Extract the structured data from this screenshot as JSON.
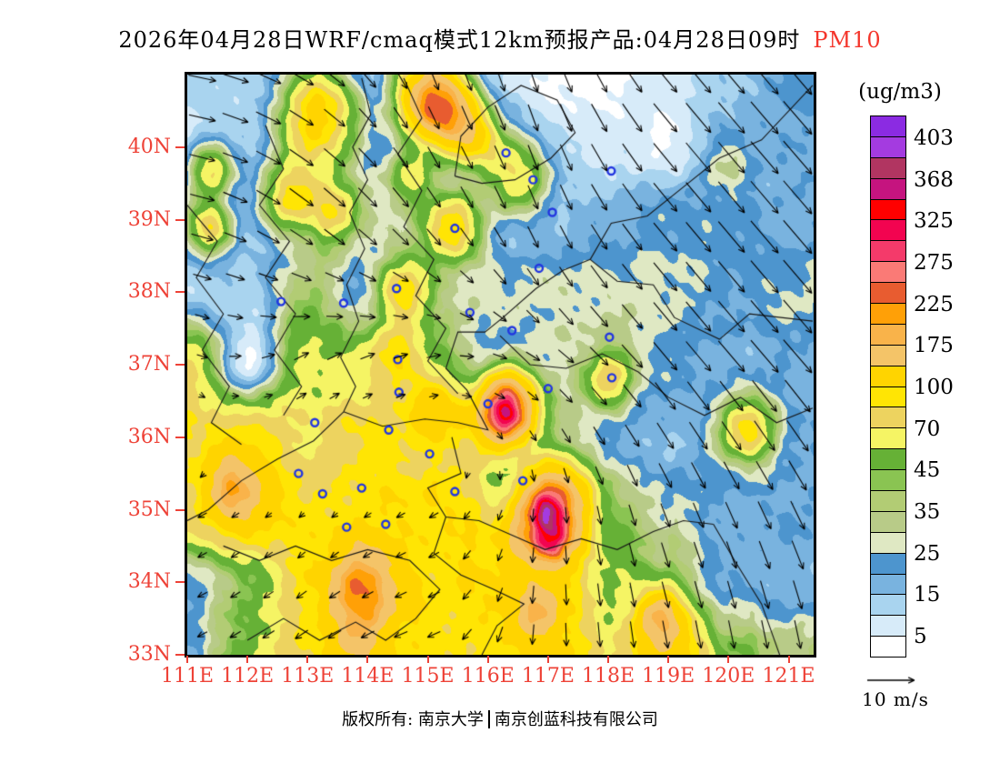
{
  "title": {
    "main": "2026年04月28日WRF/cmaq模式12km预报产品:04月28日09时",
    "pollutant": "PM10"
  },
  "colorbar": {
    "unit_label": "(ug/m3)",
    "tick_labels": [
      "403",
      "368",
      "325",
      "275",
      "225",
      "175",
      "100",
      "70",
      "45",
      "35",
      "25",
      "15",
      "5"
    ],
    "colors_top_to_bottom": [
      "#8b2be2",
      "#a43be0",
      "#b13561",
      "#c5147f",
      "#ff0000",
      "#f20450",
      "#f43a6a",
      "#fa7a76",
      "#e85c30",
      "#ffa007",
      "#f9b34a",
      "#f4c468",
      "#ffd400",
      "#ffe504",
      "#edd35f",
      "#f5f464",
      "#66b136",
      "#8ac452",
      "#b2cc74",
      "#b8cb88",
      "#dfe8c3",
      "#4d95ce",
      "#79b3df",
      "#a9d4ef",
      "#d7ebf9",
      "#ffffff"
    ]
  },
  "axes": {
    "lat_labels": [
      "40N",
      "39N",
      "38N",
      "37N",
      "36N",
      "35N",
      "34N",
      "33N"
    ],
    "lat_values": [
      40,
      39,
      38,
      37,
      36,
      35,
      34,
      33
    ],
    "lon_labels": [
      "111E",
      "112E",
      "113E",
      "114E",
      "115E",
      "116E",
      "117E",
      "118E",
      "119E",
      "120E",
      "121E"
    ],
    "lon_values": [
      111,
      112,
      113,
      114,
      115,
      116,
      117,
      118,
      119,
      120,
      121
    ],
    "label_color": "#ee4237"
  },
  "wind_legend": {
    "label": "10 m/s",
    "speed": 10
  },
  "footer": {
    "text1": "版权所有: 南京大学",
    "text2": "南京创蓝科技有限公司"
  },
  "chart_data": {
    "type": "heatmap",
    "title": "PM10 concentration forecast (ug/m3) with surface wind vectors",
    "lon_range": [
      111,
      121.42
    ],
    "lat_range": [
      33,
      41.0
    ],
    "levels_desc": [
      403,
      385,
      368,
      346,
      325,
      300,
      275,
      250,
      225,
      200,
      175,
      137,
      100,
      85,
      70,
      57,
      45,
      40,
      35,
      30,
      25,
      20,
      15,
      10,
      5
    ],
    "base_grid": {
      "lons": [
        111,
        112,
        113,
        114,
        115,
        116,
        117,
        118,
        119,
        120,
        121
      ],
      "lats_top_down": [
        41,
        40,
        39,
        38,
        37,
        36,
        35,
        34,
        33
      ],
      "values": [
        [
          12,
          12,
          20,
          10,
          60,
          12,
          4,
          4,
          8,
          14,
          22
        ],
        [
          6,
          12,
          45,
          20,
          22,
          15,
          10,
          8,
          4,
          20,
          18
        ],
        [
          15,
          12,
          18,
          25,
          30,
          12,
          12,
          18,
          22,
          22,
          18
        ],
        [
          12,
          12,
          40,
          18,
          28,
          28,
          27,
          28,
          28,
          20,
          26
        ],
        [
          70,
          4,
          60,
          55,
          50,
          20,
          28,
          32,
          22,
          18,
          18
        ],
        [
          85,
          90,
          70,
          90,
          75,
          80,
          35,
          20,
          15,
          20,
          20
        ],
        [
          80,
          120,
          90,
          95,
          100,
          95,
          230,
          42,
          28,
          18,
          20
        ],
        [
          20,
          45,
          90,
          150,
          95,
          100,
          110,
          55,
          40,
          20,
          16
        ],
        [
          20,
          50,
          90,
          100,
          90,
          90,
          110,
          70,
          120,
          45,
          35
        ]
      ]
    },
    "hotspots": [
      [
        113.2,
        40.5,
        0.4,
        80
      ],
      [
        115.05,
        40.62,
        0.32,
        170
      ],
      [
        115.45,
        40.38,
        0.3,
        120
      ],
      [
        115.85,
        40.1,
        0.28,
        60
      ],
      [
        116.5,
        39.6,
        0.35,
        55
      ],
      [
        114.7,
        39.6,
        0.25,
        40
      ],
      [
        111.4,
        39.7,
        0.25,
        60
      ],
      [
        111.35,
        38.9,
        0.25,
        65
      ],
      [
        112.7,
        39.3,
        0.3,
        70
      ],
      [
        113.4,
        39.1,
        0.3,
        60
      ],
      [
        115.45,
        38.9,
        0.3,
        80
      ],
      [
        114.6,
        38.0,
        0.3,
        70
      ],
      [
        114.45,
        37.1,
        0.3,
        50
      ],
      [
        116.3,
        36.4,
        0.3,
        280
      ],
      [
        115.1,
        36.4,
        0.3,
        60
      ],
      [
        117.0,
        34.9,
        0.45,
        60
      ],
      [
        117.05,
        34.6,
        0.18,
        130
      ],
      [
        116.95,
        34.95,
        0.15,
        110
      ],
      [
        116.4,
        35.3,
        0.35,
        -60
      ],
      [
        113.85,
        33.85,
        0.35,
        80
      ],
      [
        111.75,
        35.35,
        0.3,
        90
      ],
      [
        118.85,
        33.55,
        0.25,
        110
      ],
      [
        116.8,
        33.6,
        0.25,
        70
      ],
      [
        113.8,
        33.2,
        0.25,
        50
      ],
      [
        120.3,
        36.1,
        0.3,
        70
      ],
      [
        118.0,
        36.8,
        0.25,
        50
      ],
      [
        119.9,
        39.75,
        0.25,
        12
      ]
    ],
    "wind": {
      "lons": [
        111,
        113,
        115,
        117,
        119,
        121
      ],
      "lats_top_down": [
        41,
        39,
        37,
        35,
        33
      ],
      "u": [
        [
          6,
          5,
          2,
          2,
          5,
          6
        ],
        [
          5,
          5,
          3,
          2,
          5,
          6
        ],
        [
          2,
          3,
          3,
          3,
          5,
          6
        ],
        [
          -2,
          -1,
          -2,
          0,
          2,
          3
        ],
        [
          -2,
          -3,
          -3,
          0,
          1,
          1
        ]
      ],
      "v": [
        [
          -1,
          -3,
          -5,
          -6,
          -6,
          -7
        ],
        [
          -1,
          -4,
          -4,
          -5,
          -6,
          -7
        ],
        [
          -1,
          2,
          1,
          -2,
          -6,
          -7
        ],
        [
          -1,
          -1,
          -1,
          -3,
          -5,
          -6
        ],
        [
          -1,
          -2,
          -1,
          -5,
          -6,
          -6
        ]
      ]
    },
    "cities": [
      [
        116.3,
        39.92
      ],
      [
        117.07,
        39.1
      ],
      [
        118.05,
        39.67
      ],
      [
        116.75,
        39.55
      ],
      [
        114.48,
        38.05
      ],
      [
        115.45,
        38.88
      ],
      [
        116.85,
        38.33
      ],
      [
        115.7,
        37.72
      ],
      [
        118.02,
        37.38
      ],
      [
        116.4,
        37.47
      ],
      [
        112.56,
        37.87
      ],
      [
        113.6,
        37.85
      ],
      [
        114.5,
        37.07
      ],
      [
        117.0,
        36.67
      ],
      [
        118.06,
        36.82
      ],
      [
        113.12,
        36.2
      ],
      [
        114.35,
        36.1
      ],
      [
        114.52,
        36.62
      ],
      [
        116.0,
        36.46
      ],
      [
        113.9,
        35.3
      ],
      [
        113.25,
        35.22
      ],
      [
        115.03,
        35.77
      ],
      [
        115.45,
        35.25
      ],
      [
        116.58,
        35.4
      ],
      [
        112.85,
        35.5
      ],
      [
        113.65,
        34.76
      ],
      [
        114.3,
        34.8
      ]
    ],
    "borders": [
      [
        [
          113.9,
          40.95
        ],
        [
          114.05,
          40.45
        ],
        [
          113.75,
          40.0
        ],
        [
          114.0,
          39.55
        ],
        [
          113.7,
          39.1
        ],
        [
          113.95,
          38.6
        ],
        [
          113.65,
          38.1
        ],
        [
          113.85,
          37.6
        ],
        [
          113.55,
          37.1
        ],
        [
          113.8,
          36.7
        ],
        [
          113.6,
          36.35
        ]
      ],
      [
        [
          113.6,
          36.35
        ],
        [
          113.1,
          35.95
        ],
        [
          112.5,
          35.7
        ],
        [
          111.9,
          35.4
        ],
        [
          111.35,
          35.0
        ],
        [
          111.0,
          34.85
        ]
      ],
      [
        [
          113.6,
          36.35
        ],
        [
          114.25,
          36.15
        ],
        [
          114.95,
          36.25
        ],
        [
          115.5,
          36.2
        ],
        [
          116.0,
          36.1
        ],
        [
          115.65,
          36.65
        ],
        [
          115.3,
          36.95
        ],
        [
          115.5,
          37.45
        ],
        [
          115.95,
          37.45
        ],
        [
          116.25,
          37.65
        ],
        [
          116.8,
          38.05
        ],
        [
          117.25,
          38.3
        ],
        [
          117.7,
          38.45
        ]
      ],
      [
        [
          115.45,
          39.6
        ],
        [
          115.55,
          40.15
        ],
        [
          116.0,
          40.55
        ],
        [
          116.55,
          40.85
        ],
        [
          117.15,
          40.65
        ],
        [
          117.45,
          40.2
        ],
        [
          117.05,
          39.85
        ],
        [
          116.45,
          39.55
        ],
        [
          115.9,
          39.5
        ],
        [
          115.45,
          39.6
        ]
      ],
      [
        [
          117.7,
          38.45
        ],
        [
          118.05,
          38.95
        ],
        [
          118.65,
          39.05
        ],
        [
          119.25,
          39.45
        ],
        [
          119.85,
          39.85
        ],
        [
          120.55,
          40.1
        ],
        [
          121.4,
          40.85
        ]
      ],
      [
        [
          117.7,
          38.45
        ],
        [
          118.15,
          38.15
        ],
        [
          118.75,
          38.1
        ],
        [
          119.1,
          37.65
        ],
        [
          119.85,
          37.35
        ],
        [
          120.35,
          37.7
        ],
        [
          121.4,
          37.6
        ]
      ],
      [
        [
          115.4,
          36.0
        ],
        [
          115.55,
          35.5
        ],
        [
          115.0,
          35.3
        ],
        [
          115.3,
          34.9
        ],
        [
          115.85,
          34.85
        ],
        [
          116.4,
          34.65
        ],
        [
          116.95,
          34.45
        ],
        [
          117.55,
          34.6
        ],
        [
          118.15,
          34.45
        ],
        [
          118.75,
          34.7
        ],
        [
          119.25,
          34.85
        ],
        [
          119.75,
          34.8
        ]
      ],
      [
        [
          115.3,
          34.9
        ],
        [
          115.1,
          34.4
        ],
        [
          115.55,
          34.1
        ],
        [
          116.1,
          33.9
        ],
        [
          116.6,
          33.7
        ],
        [
          116.15,
          33.4
        ],
        [
          115.9,
          33.0
        ]
      ],
      [
        [
          112.3,
          40.3
        ],
        [
          112.6,
          39.7
        ],
        [
          112.2,
          39.2
        ],
        [
          112.7,
          38.7
        ],
        [
          112.3,
          38.2
        ],
        [
          112.8,
          37.7
        ],
        [
          112.45,
          37.2
        ],
        [
          112.9,
          36.7
        ],
        [
          112.6,
          36.3
        ]
      ],
      [
        [
          114.6,
          40.95
        ],
        [
          114.9,
          40.4
        ],
        [
          114.5,
          39.9
        ],
        [
          114.9,
          39.4
        ],
        [
          114.6,
          38.9
        ],
        [
          115.1,
          38.45
        ],
        [
          114.8,
          37.95
        ],
        [
          115.3,
          37.5
        ],
        [
          115.0,
          37.05
        ],
        [
          115.5,
          36.6
        ]
      ],
      [
        [
          116.2,
          37.4
        ],
        [
          116.7,
          37.0
        ],
        [
          117.3,
          36.95
        ],
        [
          117.9,
          37.15
        ],
        [
          118.5,
          36.9
        ],
        [
          119.0,
          36.55
        ],
        [
          119.6,
          36.3
        ],
        [
          120.2,
          36.55
        ],
        [
          120.8,
          36.2
        ],
        [
          121.4,
          36.4
        ]
      ],
      [
        [
          111.6,
          34.5
        ],
        [
          112.2,
          34.3
        ],
        [
          112.8,
          34.5
        ],
        [
          113.4,
          34.3
        ],
        [
          114.0,
          34.45
        ],
        [
          114.7,
          34.3
        ],
        [
          115.2,
          33.9
        ],
        [
          114.8,
          33.5
        ],
        [
          114.3,
          33.2
        ],
        [
          113.8,
          33.45
        ],
        [
          113.2,
          33.2
        ],
        [
          112.6,
          33.5
        ],
        [
          112.0,
          33.2
        ]
      ],
      [
        [
          119.75,
          34.8
        ],
        [
          120.1,
          34.3
        ],
        [
          120.55,
          33.7
        ],
        [
          120.85,
          33.0
        ]
      ],
      [
        [
          111.0,
          39.2
        ],
        [
          111.5,
          38.7
        ],
        [
          111.15,
          38.2
        ],
        [
          111.6,
          37.7
        ],
        [
          111.25,
          37.2
        ],
        [
          111.7,
          36.7
        ],
        [
          111.4,
          36.2
        ],
        [
          111.9,
          35.9
        ]
      ]
    ],
    "marker_color": "#2236e0",
    "border_color": "#161616",
    "grid_on": false,
    "legend_position": "right"
  }
}
